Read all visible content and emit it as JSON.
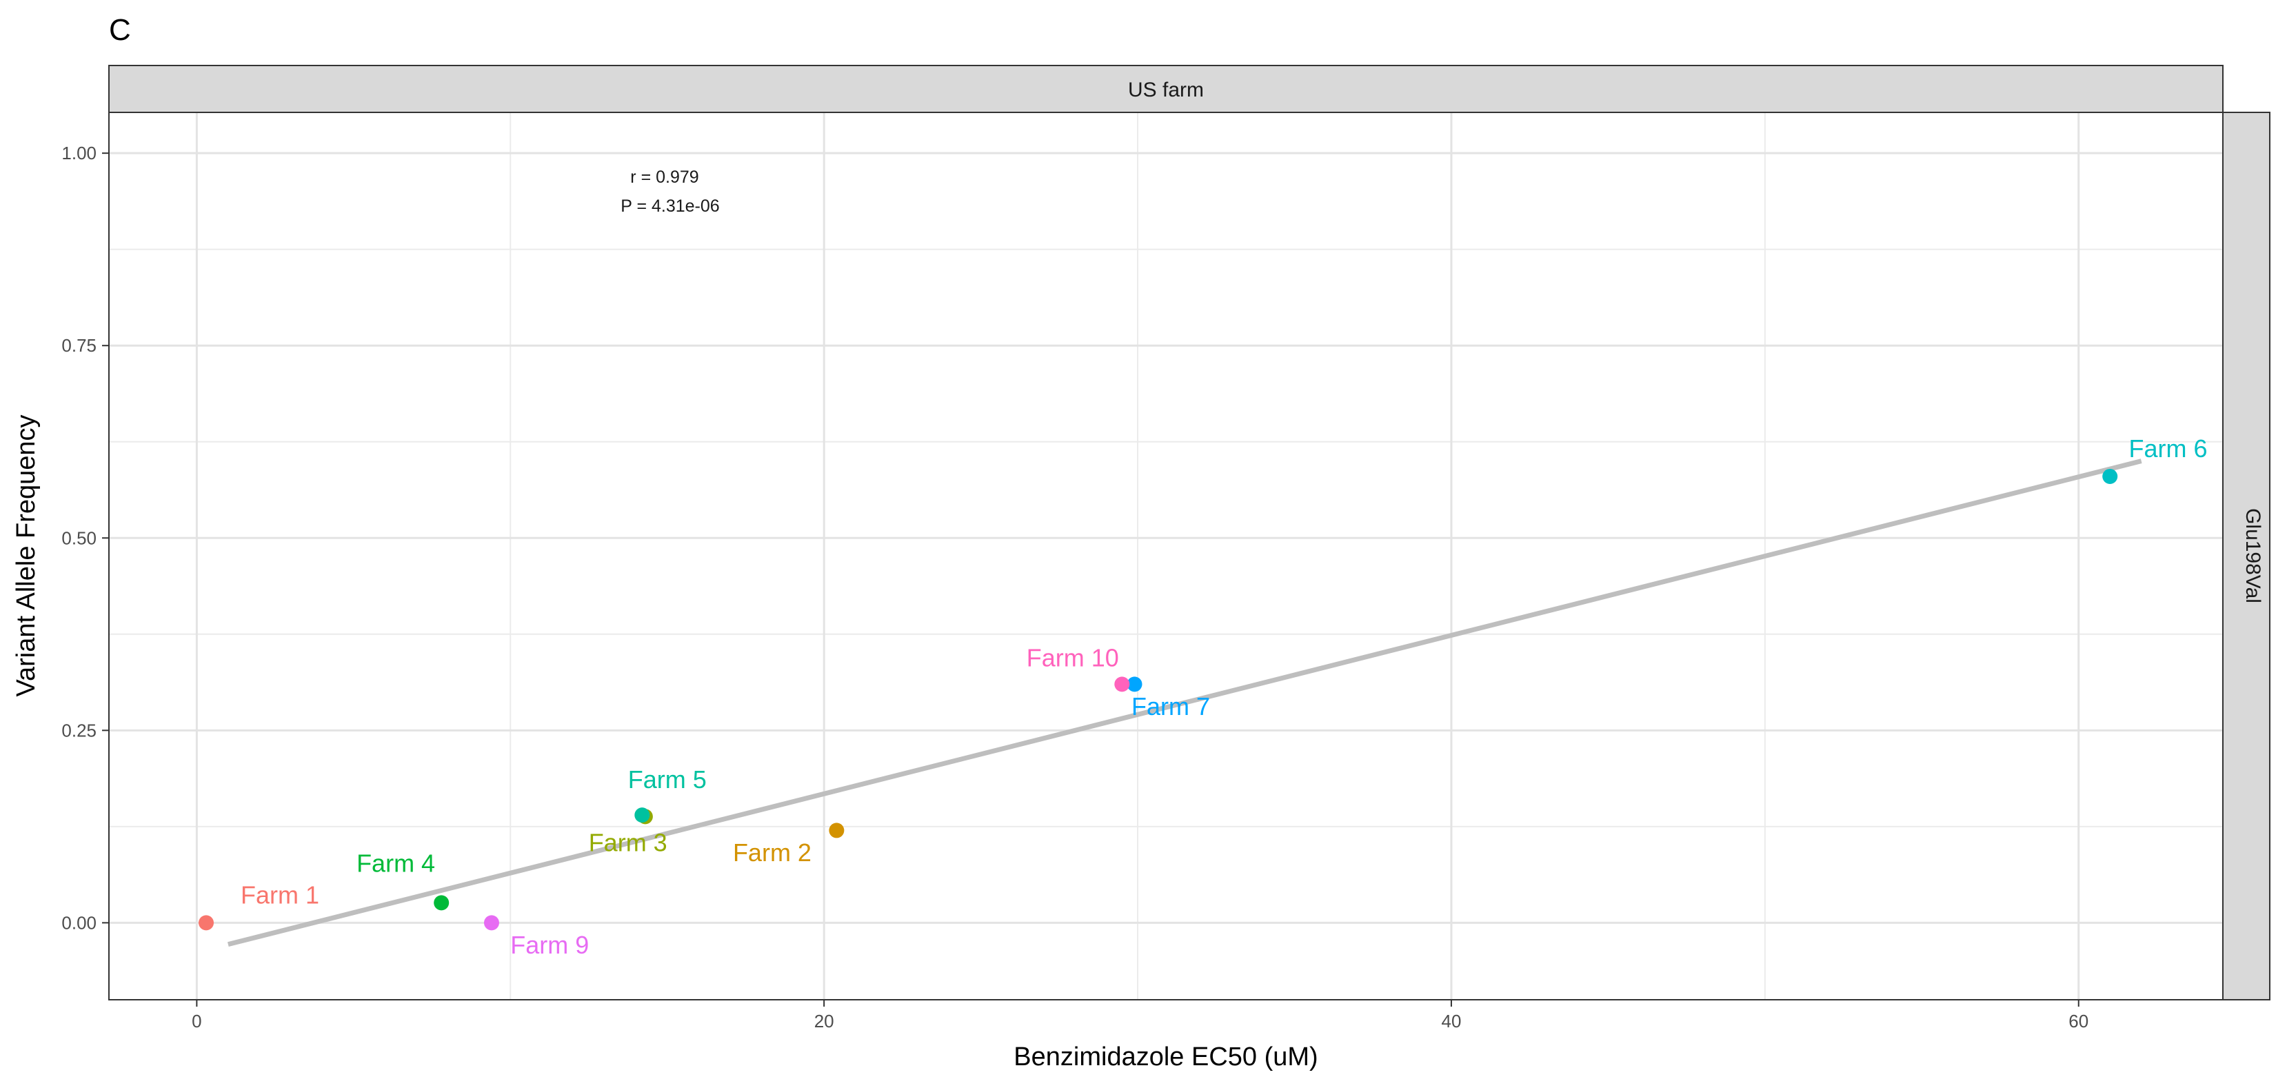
{
  "panel_letter": "C",
  "strip_top": "US farm",
  "strip_right": "Glu198Val",
  "annotation": {
    "r_text": "r =  0.979",
    "p_text": "P =  4.31e-06"
  },
  "chart_data": {
    "type": "scatter",
    "xlabel": "Benzimidazole EC50 (uM)",
    "ylabel": "Variant Allele Frequency",
    "xlim": [
      -2.8,
      64.6
    ],
    "ylim": [
      -0.1,
      1.053
    ],
    "x_ticks": [
      0,
      20,
      40,
      60
    ],
    "y_ticks": [
      0.0,
      0.25,
      0.5,
      0.75,
      1.0
    ],
    "x_tick_labels": [
      "0",
      "20",
      "40",
      "60"
    ],
    "y_tick_labels": [
      "0.00",
      "0.25",
      "0.50",
      "0.75",
      "1.00"
    ],
    "grid": true,
    "points": [
      {
        "label": "Farm 1",
        "x": 0.3,
        "y": 0.0,
        "color": "#F8766D",
        "label_dx": 1.1,
        "label_dy": 0.025,
        "anchor": "start"
      },
      {
        "label": "Farm 2",
        "x": 20.4,
        "y": 0.12,
        "color": "#D39200",
        "label_dx": -0.8,
        "label_dy": -0.04,
        "anchor": "end"
      },
      {
        "label": "Farm 3",
        "x": 14.3,
        "y": 0.138,
        "color": "#93AA00",
        "label_dx": 0.7,
        "label_dy": -0.045,
        "anchor": "end"
      },
      {
        "label": "Farm 4",
        "x": 7.8,
        "y": 0.026,
        "color": "#00BA38",
        "label_dx": -0.2,
        "label_dy": 0.04,
        "anchor": "end"
      },
      {
        "label": "Farm 5",
        "x": 14.2,
        "y": 0.14,
        "color": "#00C19F",
        "label_dx": 0.8,
        "label_dy": 0.035,
        "anchor": "middle"
      },
      {
        "label": "Farm 6",
        "x": 61.0,
        "y": 0.58,
        "color": "#00B9E3",
        "label_dx": 0.6,
        "label_dy": 0.025,
        "anchor": "start",
        "color_override": "#00BFC4"
      },
      {
        "label": "Farm 7",
        "x": 29.9,
        "y": 0.31,
        "color": "#00A5FF",
        "label_dx": -0.1,
        "label_dy": -0.04,
        "anchor": "start"
      },
      {
        "label": "Farm 9",
        "x": 9.4,
        "y": 0.0,
        "color": "#E76BF3",
        "label_dx": 0.6,
        "label_dy": -0.04,
        "anchor": "start"
      },
      {
        "label": "Farm 10",
        "x": 29.5,
        "y": 0.31,
        "color": "#FF62BC",
        "label_dx": -0.1,
        "label_dy": 0.023,
        "anchor": "end"
      }
    ],
    "fit_line": {
      "x": [
        1.0,
        62.0
      ],
      "y": [
        -0.028,
        0.6
      ],
      "color": "#bebebe"
    }
  }
}
